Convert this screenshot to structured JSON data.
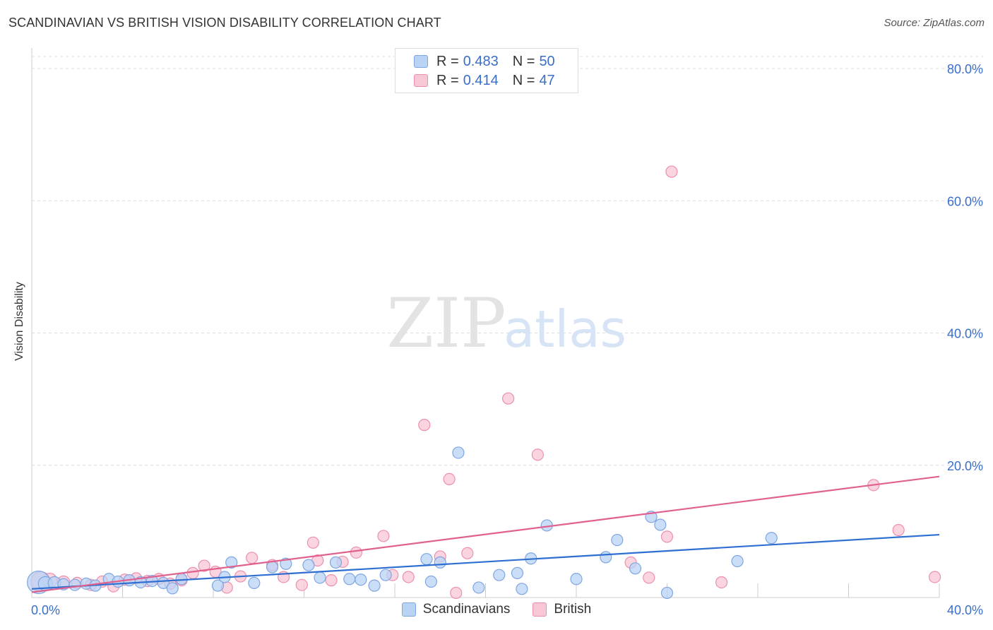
{
  "title": "SCANDINAVIAN VS BRITISH VISION DISABILITY CORRELATION CHART",
  "source": "Source: ZipAtlas.com",
  "watermark": {
    "zip": "ZIP",
    "atlas": "atlas"
  },
  "colors": {
    "blue_fill": "#b9d3f5",
    "blue_stroke": "#7fa6e0",
    "blue_line": "#2e6fd1",
    "pink_fill": "#f8c7d6",
    "pink_stroke": "#ec8fae",
    "pink_line": "#e0608e",
    "tick_label": "#3a6fc9",
    "grid": "#dddddd"
  },
  "legend": {
    "rows": [
      {
        "r_label": "R =",
        "r_value": "0.483",
        "n_label": "N =",
        "n_value": "50"
      },
      {
        "r_label": "R =",
        "r_value": "0.414",
        "n_label": "N =",
        "n_value": "47"
      }
    ]
  },
  "chart_data": {
    "type": "scatter",
    "title": "SCANDINAVIAN VS BRITISH VISION DISABILITY CORRELATION CHART",
    "xlabel": "",
    "ylabel": "Vision Disability",
    "xlim": [
      0,
      40
    ],
    "ylim": [
      0,
      80
    ],
    "x_tick_labels": [
      "0.0%",
      "40.0%"
    ],
    "y_ticks": [
      20,
      40,
      60,
      80
    ],
    "y_tick_labels": [
      "20.0%",
      "40.0%",
      "60.0%",
      "80.0%"
    ],
    "grid": true,
    "series": [
      {
        "name": "Scandinavians",
        "R": 0.483,
        "N": 50,
        "trend": {
          "x": [
            0,
            40
          ],
          "y": [
            1.3,
            9.5
          ]
        },
        "points": [
          [
            0.3,
            2.3,
            16
          ],
          [
            0.6,
            2.1,
            10
          ],
          [
            1.0,
            2.2,
            9
          ],
          [
            1.4,
            2.0,
            8
          ],
          [
            1.9,
            1.9,
            8
          ],
          [
            2.4,
            2.1,
            8
          ],
          [
            2.8,
            1.8,
            8
          ],
          [
            3.4,
            2.8,
            8
          ],
          [
            3.8,
            2.4,
            8
          ],
          [
            4.3,
            2.6,
            8
          ],
          [
            4.8,
            2.3,
            8
          ],
          [
            5.3,
            2.5,
            8
          ],
          [
            5.8,
            2.2,
            8
          ],
          [
            6.2,
            1.4,
            8
          ],
          [
            6.6,
            2.8,
            8
          ],
          [
            8.2,
            1.8,
            8
          ],
          [
            8.5,
            3.1,
            8
          ],
          [
            8.8,
            5.3,
            8
          ],
          [
            9.8,
            2.2,
            8
          ],
          [
            10.6,
            4.6,
            8
          ],
          [
            11.2,
            5.1,
            8
          ],
          [
            12.2,
            4.9,
            8
          ],
          [
            12.7,
            3.0,
            8
          ],
          [
            13.4,
            5.3,
            8
          ],
          [
            14.0,
            2.8,
            8
          ],
          [
            14.5,
            2.7,
            8
          ],
          [
            15.1,
            1.8,
            8
          ],
          [
            15.6,
            3.4,
            8
          ],
          [
            17.4,
            5.8,
            8
          ],
          [
            17.6,
            2.4,
            8
          ],
          [
            18.0,
            5.3,
            8
          ],
          [
            18.8,
            21.9,
            8
          ],
          [
            19.7,
            1.5,
            8
          ],
          [
            20.6,
            3.4,
            8
          ],
          [
            21.4,
            3.7,
            8
          ],
          [
            21.6,
            1.3,
            8
          ],
          [
            22.0,
            5.9,
            8
          ],
          [
            22.7,
            10.9,
            8
          ],
          [
            24.0,
            2.8,
            8
          ],
          [
            25.3,
            6.1,
            8
          ],
          [
            25.8,
            8.7,
            8
          ],
          [
            26.6,
            4.4,
            8
          ],
          [
            27.3,
            12.2,
            8
          ],
          [
            27.7,
            11.0,
            8
          ],
          [
            28.0,
            0.7,
            8
          ],
          [
            31.1,
            5.5,
            8
          ],
          [
            32.6,
            9.0,
            8
          ]
        ]
      },
      {
        "name": "British",
        "R": 0.414,
        "N": 47,
        "trend": {
          "x": [
            0,
            40
          ],
          "y": [
            0.8,
            18.3
          ]
        },
        "points": [
          [
            0.4,
            2.4,
            14
          ],
          [
            0.8,
            2.6,
            10
          ],
          [
            1.4,
            2.3,
            9
          ],
          [
            2.0,
            2.2,
            8
          ],
          [
            2.6,
            1.9,
            8
          ],
          [
            3.1,
            2.4,
            8
          ],
          [
            3.6,
            1.7,
            8
          ],
          [
            4.1,
            2.7,
            8
          ],
          [
            4.6,
            2.9,
            8
          ],
          [
            5.1,
            2.5,
            8
          ],
          [
            5.6,
            2.8,
            8
          ],
          [
            6.1,
            2.1,
            8
          ],
          [
            6.6,
            2.6,
            8
          ],
          [
            7.1,
            3.7,
            8
          ],
          [
            7.6,
            4.8,
            8
          ],
          [
            8.1,
            3.9,
            8
          ],
          [
            8.6,
            1.5,
            8
          ],
          [
            9.2,
            3.2,
            8
          ],
          [
            9.7,
            6.0,
            8
          ],
          [
            10.6,
            4.9,
            8
          ],
          [
            11.1,
            3.1,
            8
          ],
          [
            11.9,
            1.9,
            8
          ],
          [
            12.4,
            8.3,
            8
          ],
          [
            12.6,
            5.6,
            8
          ],
          [
            13.2,
            2.6,
            8
          ],
          [
            13.7,
            5.4,
            8
          ],
          [
            14.3,
            6.8,
            8
          ],
          [
            15.5,
            9.3,
            8
          ],
          [
            15.9,
            3.4,
            8
          ],
          [
            16.6,
            3.1,
            8
          ],
          [
            17.3,
            26.1,
            8
          ],
          [
            18.0,
            6.2,
            8
          ],
          [
            18.4,
            17.9,
            8
          ],
          [
            18.7,
            0.7,
            8
          ],
          [
            19.2,
            6.7,
            8
          ],
          [
            21.0,
            30.1,
            8
          ],
          [
            22.3,
            21.6,
            8
          ],
          [
            26.4,
            5.3,
            8
          ],
          [
            27.2,
            3.0,
            8
          ],
          [
            28.0,
            9.2,
            8
          ],
          [
            28.2,
            64.4,
            8
          ],
          [
            30.4,
            2.3,
            8
          ],
          [
            37.1,
            17.0,
            8
          ],
          [
            38.2,
            10.2,
            8
          ],
          [
            39.8,
            3.1,
            8
          ]
        ]
      }
    ]
  },
  "bottom_legend": [
    "Scandinavians",
    "British"
  ]
}
